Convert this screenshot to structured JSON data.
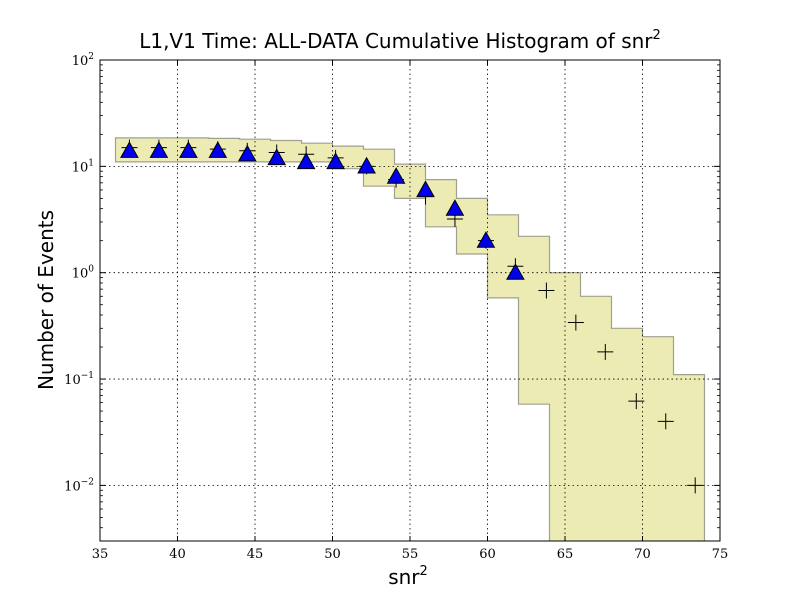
{
  "chart_data": {
    "type": "scatter",
    "title": "L1,V1 Time: ALL-DATA Cumulative Histogram of snr",
    "title_superscript": "2",
    "xlabel": "snr",
    "xlabel_superscript": "2",
    "ylabel": "Number of Events",
    "xlim": [
      35,
      75
    ],
    "ylim": [
      0.003,
      100
    ],
    "yscale": "log",
    "grid": true,
    "x_ticks": [
      35,
      40,
      45,
      50,
      55,
      60,
      65,
      70,
      75
    ],
    "x_tick_labels": [
      "35",
      "40",
      "45",
      "50",
      "55",
      "60",
      "65",
      "70",
      "75"
    ],
    "y_ticks": [
      0.01,
      0.1,
      1,
      10,
      100
    ],
    "y_tick_labels": [
      {
        "base": "10",
        "exp": "−2"
      },
      {
        "base": "10",
        "exp": "−1"
      },
      {
        "base": "10",
        "exp": "0"
      },
      {
        "base": "10",
        "exp": "1"
      },
      {
        "base": "10",
        "exp": "2"
      }
    ],
    "colors": {
      "band_fill": "#ecebb3",
      "band_edge": "#a0a090",
      "triangle_fill": "#0000ee",
      "triangle_edge": "#000000",
      "plus": "#000000",
      "grid": "#000000"
    },
    "band": {
      "bin_edges": [
        36,
        38,
        40,
        42,
        44,
        46,
        48,
        50,
        52,
        54,
        56,
        58,
        60,
        62,
        64,
        66,
        68,
        70,
        72,
        74
      ],
      "upper": [
        18.5,
        18.5,
        18.5,
        18.3,
        18.0,
        17.5,
        16.5,
        15.5,
        14.5,
        10.5,
        7.5,
        5.0,
        3.5,
        2.2,
        1.0,
        0.6,
        0.3,
        0.25,
        0.11
      ],
      "lower": [
        11,
        11,
        11,
        11,
        11,
        11,
        11,
        9.5,
        6.5,
        5,
        2.7,
        1.5,
        0.58,
        0.058,
        0.001,
        0.001,
        0.001,
        0.001,
        0.001
      ]
    },
    "series": [
      {
        "marker": "triangle",
        "x": [
          36.9,
          38.8,
          40.7,
          42.6,
          44.5,
          46.4,
          48.3,
          50.2,
          52.2,
          54.1,
          56.0,
          57.9,
          59.9,
          61.8
        ],
        "y": [
          14,
          14,
          14,
          14,
          13,
          12,
          11,
          11,
          10,
          8,
          6,
          4,
          2,
          1
        ]
      },
      {
        "marker": "plus",
        "x": [
          36.9,
          38.8,
          40.7,
          42.6,
          44.5,
          46.4,
          48.3,
          50.2,
          52.2,
          54.1,
          56.0,
          57.9,
          59.9,
          61.8,
          63.8,
          65.7,
          67.6,
          69.6,
          71.5,
          73.4
        ],
        "y": [
          15,
          15,
          15,
          14.5,
          14,
          13.5,
          13,
          12,
          10,
          7.5,
          5.2,
          3.2,
          2.0,
          1.15,
          0.68,
          0.34,
          0.18,
          0.062,
          0.04,
          0.01
        ]
      }
    ]
  }
}
